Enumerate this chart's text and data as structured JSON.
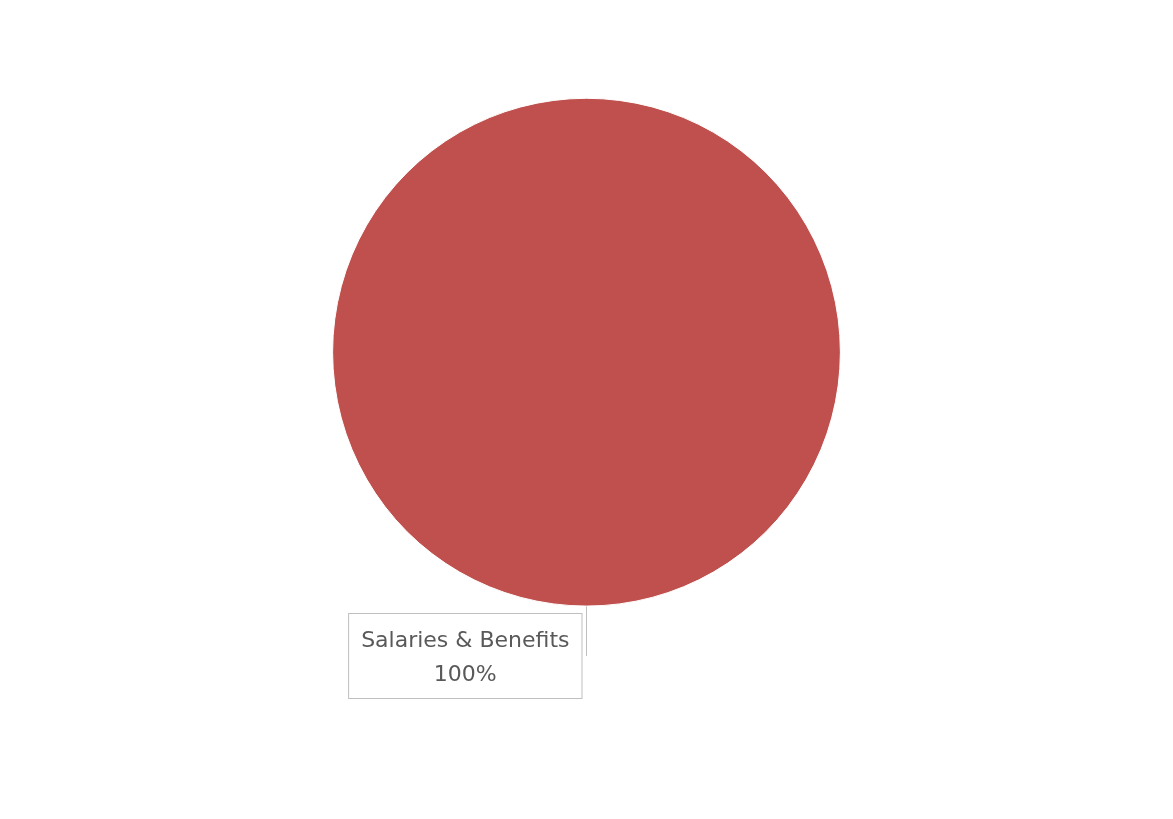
{
  "chart_data": {
    "type": "pie",
    "categories": [
      "Salaries & Benefits"
    ],
    "values": [
      100
    ],
    "colors": [
      "#c0504d"
    ],
    "value_labels": [
      "100%"
    ]
  }
}
